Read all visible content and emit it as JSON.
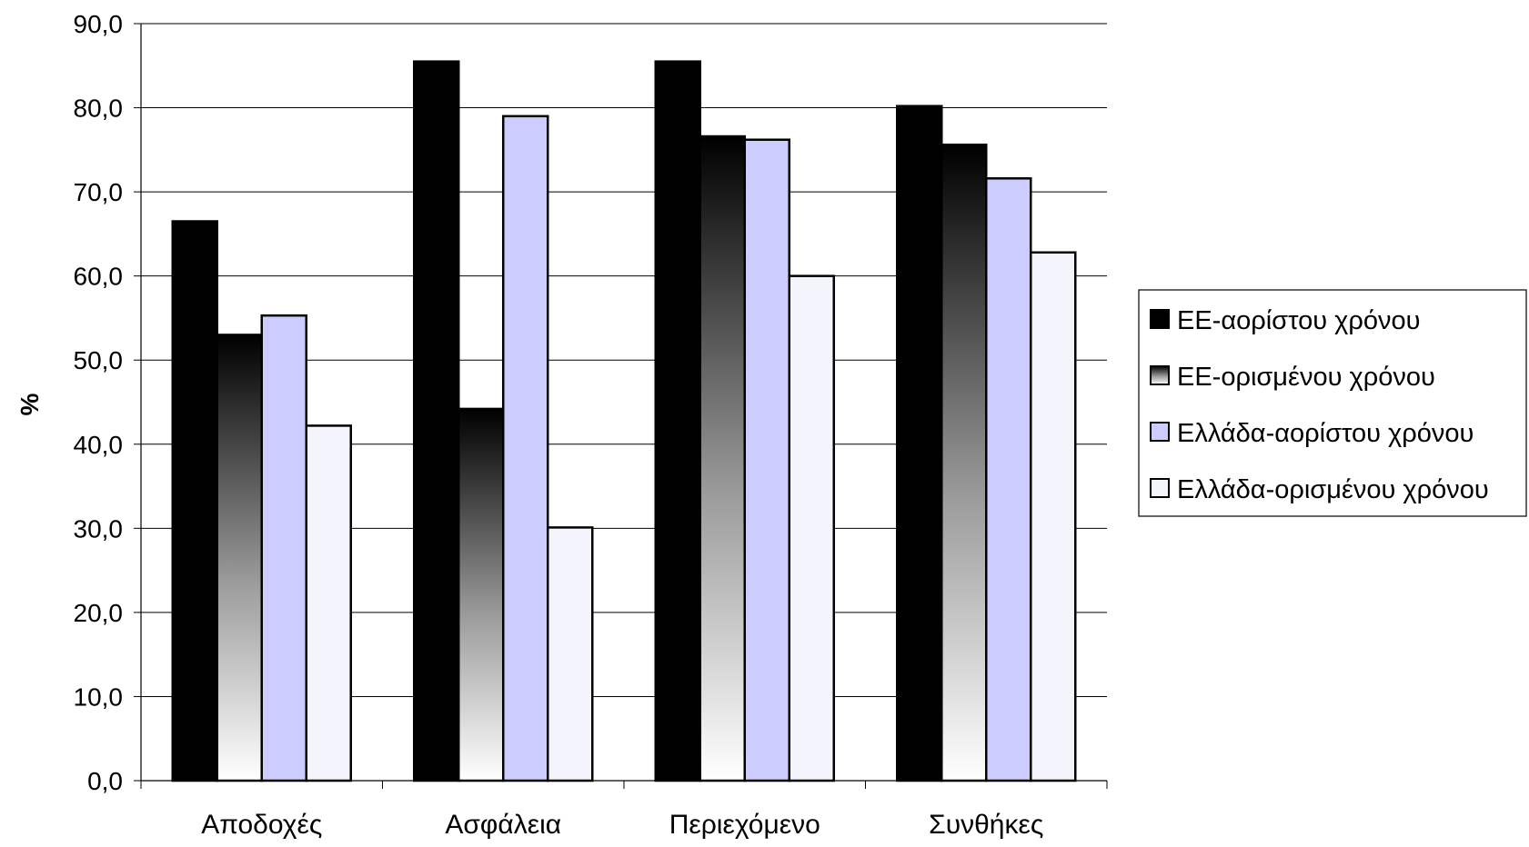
{
  "chart_data": {
    "type": "bar",
    "title": "",
    "xlabel": "",
    "ylabel": "%",
    "ylim": [
      0,
      90
    ],
    "yticks": [
      "0,0",
      "10,0",
      "20,0",
      "30,0",
      "40,0",
      "50,0",
      "60,0",
      "70,0",
      "80,0",
      "90,0"
    ],
    "grid": true,
    "legend_position": "right",
    "categories": [
      "Αποδοχές",
      "Ασφάλεια",
      "Περιεχόμενο",
      "Συνθήκες"
    ],
    "series": [
      {
        "name": "ΕΕ-αορίστου χρόνου",
        "values": [
          66.5,
          85.5,
          85.5,
          80.2
        ],
        "fill": "solid-black",
        "color": "#000000"
      },
      {
        "name": "ΕΕ-ορισμένου χρόνου",
        "values": [
          53.0,
          44.2,
          76.6,
          75.6
        ],
        "fill": "gradient-black-to-white",
        "color": "#000000"
      },
      {
        "name": "Ελλάδα-αορίστου χρόνου",
        "values": [
          55.3,
          79.0,
          76.2,
          71.6
        ],
        "fill": "solid-lavender",
        "color": "#ccccff"
      },
      {
        "name": "Ελλάδα-ορισμένου χρόνου",
        "values": [
          42.2,
          30.1,
          60.0,
          62.8
        ],
        "fill": "solid-pale",
        "color": "#f4f4fc"
      }
    ]
  }
}
